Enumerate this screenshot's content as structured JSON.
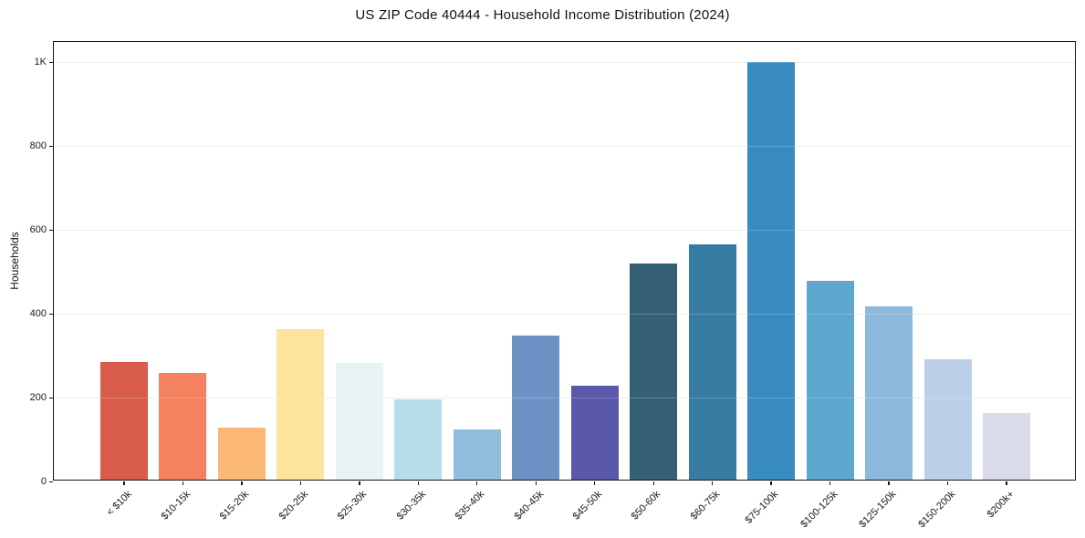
{
  "chart_data": {
    "type": "bar",
    "title": "US ZIP Code 40444 - Household Income Distribution (2024)",
    "xlabel": "",
    "ylabel": "Households",
    "categories": [
      "< $10k",
      "$10-15k",
      "$15-20k",
      "$20-25k",
      "$25-30k",
      "$30-35k",
      "$35-40k",
      "$40-45k",
      "$45-50k",
      "$50-60k",
      "$60-75k",
      "$75-100k",
      "$100-125k",
      "$125-150k",
      "$150-200k",
      "$200k+"
    ],
    "values": [
      281,
      254,
      124,
      358,
      278,
      191,
      120,
      343,
      224,
      516,
      560,
      995,
      473,
      414,
      288,
      158
    ],
    "bar_colors": [
      "#d85c4a",
      "#f4825f",
      "#fbb877",
      "#fde49c",
      "#e8f2f5",
      "#b9dcea",
      "#90bddc",
      "#6c92c6",
      "#5a58a9",
      "#355f74",
      "#367ba2",
      "#388cc1",
      "#5ea8cf",
      "#8cb8dc",
      "#bdd0e9",
      "#d9dbea"
    ],
    "yticks": {
      "values": [
        0,
        200,
        400,
        600,
        800,
        1000
      ],
      "labels": [
        "0",
        "200",
        "400",
        "600",
        "800",
        "1K"
      ]
    },
    "ylim": [
      0,
      1048
    ],
    "grid": "horizontal",
    "gridline_color": "#e9e9e9",
    "legend": "none",
    "xtick_rotation_deg": 45
  }
}
